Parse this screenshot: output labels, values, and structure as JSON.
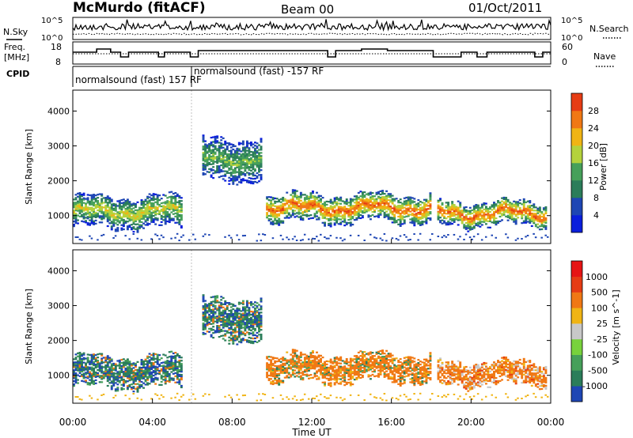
{
  "header": {
    "station": "McMurdo (fitACF)",
    "beam": "Beam 00",
    "date": "01/Oct/2011"
  },
  "summary_panels": {
    "nsky": {
      "left_label": "N.Sky",
      "right_label": "N.Search",
      "left_ticks": [
        "10^5",
        "10^0"
      ],
      "right_ticks": [
        "10^5",
        "10^0"
      ]
    },
    "freq": {
      "left_label_line1": "Freq.",
      "left_label_line2": "[MHz]",
      "right_label": "Nave",
      "left_ticks": [
        "18",
        "8"
      ],
      "right_ticks": [
        "60",
        "0"
      ]
    },
    "cpid": {
      "label": "CPID",
      "programs": [
        {
          "name": "normalsound (fast) 157 RF",
          "start_hour": 0
        },
        {
          "name": "normalsound (fast) -157 RF",
          "start_hour": 6
        }
      ]
    }
  },
  "chart_data": [
    {
      "type": "heatmap",
      "name": "power-panel",
      "ylabel": "Slant Range [km]",
      "yticks": [
        "1000",
        "2000",
        "3000",
        "4000"
      ],
      "ylim": [
        200,
        4600
      ],
      "xlim": [
        0,
        24
      ],
      "xticks": [
        "00:00",
        "04:00",
        "08:00",
        "12:00",
        "16:00",
        "20:00",
        "00:00"
      ],
      "xticks_hours": [
        0,
        4,
        8,
        12,
        16,
        20,
        24
      ],
      "colorbar": {
        "label": "Power [dB]",
        "ticks": [
          "28",
          "24",
          "20",
          "16",
          "12",
          "8",
          "4"
        ],
        "levels": [
          0,
          4,
          8,
          12,
          16,
          20,
          24,
          28,
          32
        ],
        "colors": [
          "#0a1edc",
          "#1e46b4",
          "#2b7d5a",
          "#46a05a",
          "#b4d23c",
          "#f0b414",
          "#f07814",
          "#e63c14"
        ]
      },
      "features": [
        {
          "name": "main-layer-morning",
          "t_start": 0,
          "t_end": 5.5,
          "range_center": 1100,
          "range_width": 900,
          "peak_db": 20
        },
        {
          "name": "main-layer-midday",
          "t_start": 9.7,
          "t_end": 18,
          "range_center": 1200,
          "range_width": 800,
          "peak_db": 28
        },
        {
          "name": "main-layer-evening",
          "t_start": 18.3,
          "t_end": 23.8,
          "range_center": 1050,
          "range_width": 700,
          "peak_db": 28
        },
        {
          "name": "high-range-patch",
          "t_start": 6.5,
          "t_end": 9.5,
          "range_center": 2600,
          "range_width": 1200,
          "peak_db": 16
        }
      ]
    },
    {
      "type": "heatmap",
      "name": "velocity-panel",
      "ylabel": "Slant Range [km]",
      "yticks": [
        "1000",
        "2000",
        "3000",
        "4000"
      ],
      "ylim": [
        200,
        4600
      ],
      "xlim": [
        0,
        24
      ],
      "xlabel": "Time UT",
      "xticks": [
        "00:00",
        "04:00",
        "08:00",
        "12:00",
        "16:00",
        "20:00",
        "00:00"
      ],
      "xticks_hours": [
        0,
        4,
        8,
        12,
        16,
        20,
        24
      ],
      "colorbar": {
        "label": "Velocity [m s^-1]",
        "ticks": [
          "1000",
          "500",
          "100",
          "25",
          "-25",
          "-100",
          "-500",
          "-1000"
        ],
        "colors": [
          "#1e46b4",
          "#2b7d5a",
          "#46a05a",
          "#78d23c",
          "#c8c8c8",
          "#f0b414",
          "#f07814",
          "#e63c14",
          "#e61414"
        ]
      },
      "features": [
        {
          "name": "mixed-morning",
          "t_start": 0,
          "t_end": 9.5,
          "dominant": "green-blue"
        },
        {
          "name": "receding-midday",
          "t_start": 9.7,
          "t_end": 18,
          "dominant": "orange"
        },
        {
          "name": "receding-evening",
          "t_start": 18.3,
          "t_end": 23.8,
          "dominant": "orange-gray"
        }
      ]
    }
  ]
}
